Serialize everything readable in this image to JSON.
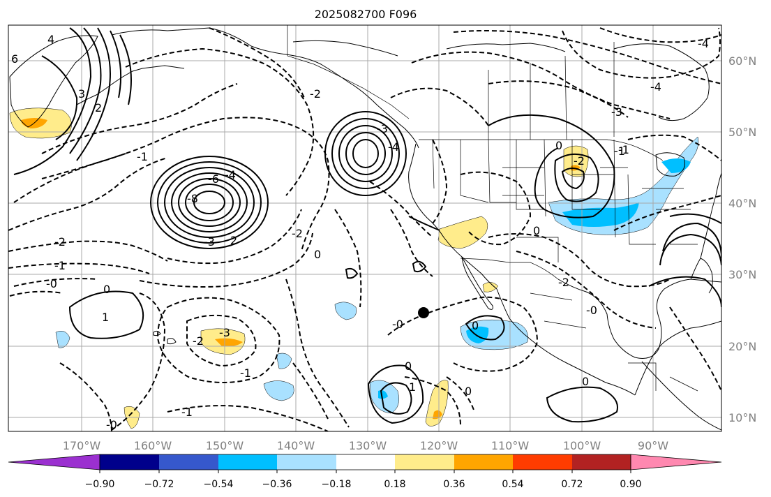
{
  "title": "2025082700 F096",
  "lon_ticks": [
    "170°W",
    "160°W",
    "150°W",
    "140°W",
    "130°W",
    "120°W",
    "110°W",
    "100°W",
    "90°W"
  ],
  "lat_ticks": [
    "60°N",
    "50°N",
    "40°N",
    "30°N",
    "20°N",
    "10°N"
  ],
  "colorbar": {
    "labels": [
      "−0.90",
      "−0.72",
      "−0.54",
      "−0.36",
      "−0.18",
      "0.18",
      "0.36",
      "0.54",
      "0.72",
      "0.90"
    ],
    "colors": [
      "#9b30d0",
      "#00008b",
      "#3658cc",
      "#00bfff",
      "#a9e1ff",
      "#ffffff",
      "#ffec8b",
      "#ffa500",
      "#ff3c00",
      "#b22222",
      "#ff88b0"
    ]
  },
  "contour_labels": {
    "l1": "6",
    "l2": "4",
    "l3": "3",
    "l4": "2",
    "l5": "-4",
    "l6": "-6",
    "l7": "-8",
    "l8": "-3",
    "l9": "2",
    "l10": "-2",
    "l11": "-1",
    "l12": "-0",
    "l13": "0",
    "l14": "1",
    "l15": "-3",
    "l16": "-2",
    "l17": "-1",
    "l18": "-0",
    "l19": "-3",
    "l20": "-4",
    "l21": "-2",
    "l22": "0",
    "l23": "0",
    "l24": "1",
    "l25": "0",
    "l26": "0",
    "l27": "-2",
    "l28": "-1",
    "l29": "0",
    "l30": "-4",
    "l31": "-2",
    "l32": "-0",
    "l33": "0",
    "l34": "-1",
    "l35": "-1",
    "l36": "-0",
    "l37": "0",
    "l38": "-2",
    "l39": "-1",
    "l40": "-3",
    "l41": "-4"
  },
  "marker": {
    "name": "point marker",
    "lat": 24.6,
    "lon": "120.8°W"
  }
}
